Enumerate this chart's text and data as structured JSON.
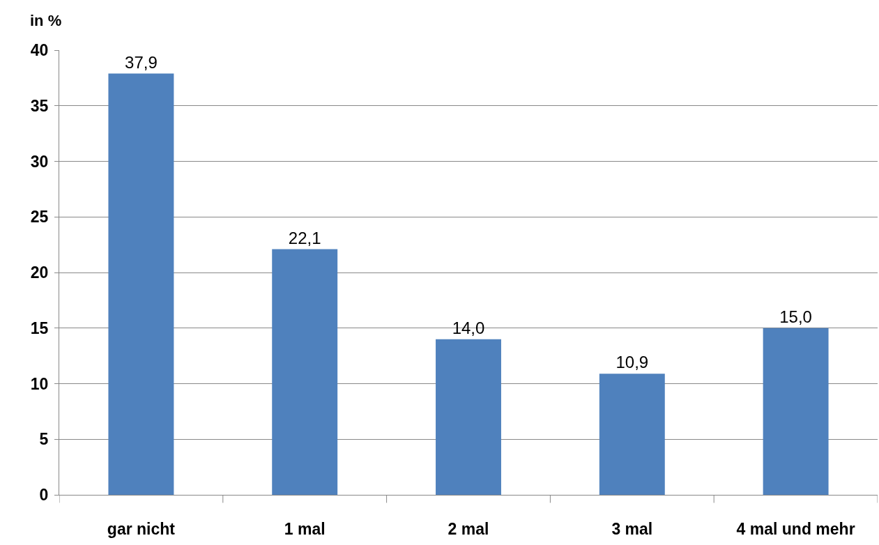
{
  "chart_data": {
    "type": "bar",
    "ylabel": "in %",
    "categories": [
      "gar nicht",
      "1 mal",
      "2 mal",
      "3 mal",
      "4 mal und mehr"
    ],
    "values": [
      37.9,
      22.1,
      14.0,
      10.9,
      15.0
    ],
    "value_labels": [
      "37,9",
      "22,1",
      "14,0",
      "10,9",
      "15,0"
    ],
    "color": "#4f81bd",
    "ylim": [
      0,
      40
    ],
    "yticks": [
      0,
      5,
      10,
      15,
      20,
      25,
      30,
      35,
      40
    ],
    "grid": "y",
    "legend": false
  }
}
